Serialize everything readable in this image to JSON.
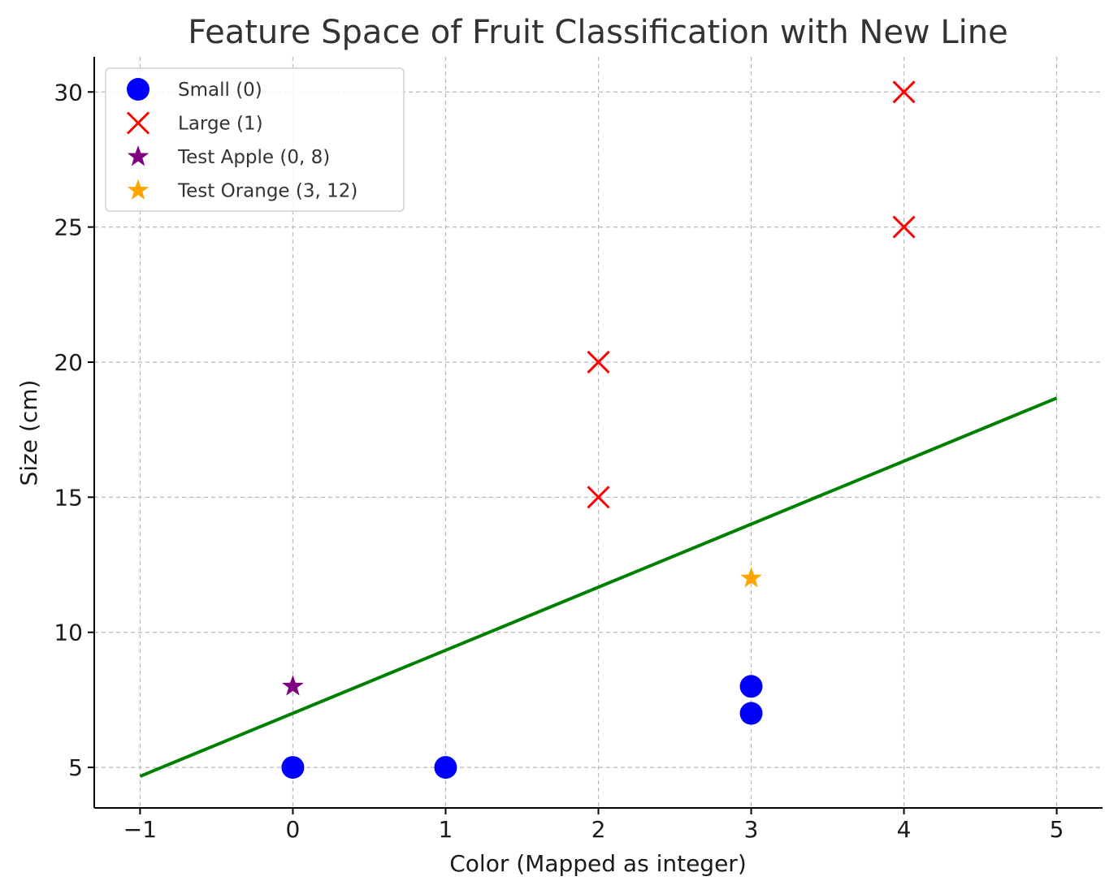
{
  "chart_data": {
    "type": "scatter",
    "title": "Feature Space of Fruit Classification with New Line",
    "xlabel": "Color (Mapped as integer)",
    "ylabel": "Size (cm)",
    "xlim": [
      -1.3,
      5.3
    ],
    "ylim": [
      3.5,
      31.3
    ],
    "x_ticks": [
      -1,
      0,
      1,
      2,
      3,
      4,
      5
    ],
    "x_tick_labels": [
      "−1",
      "0",
      "1",
      "2",
      "3",
      "4",
      "5"
    ],
    "y_ticks": [
      5,
      10,
      15,
      20,
      25,
      30
    ],
    "y_tick_labels": [
      "5",
      "10",
      "15",
      "20",
      "25",
      "30"
    ],
    "grid": true,
    "legend_position": "upper-left",
    "series": [
      {
        "name": "Small (0)",
        "marker": "circle",
        "color": "#0000ff",
        "points": [
          {
            "x": 0,
            "y": 5
          },
          {
            "x": 1,
            "y": 5
          },
          {
            "x": 3,
            "y": 7
          },
          {
            "x": 3,
            "y": 8
          }
        ]
      },
      {
        "name": "Large (1)",
        "marker": "x",
        "color": "#ff0000",
        "points": [
          {
            "x": 2,
            "y": 15
          },
          {
            "x": 2,
            "y": 20
          },
          {
            "x": 4,
            "y": 25
          },
          {
            "x": 4,
            "y": 30
          }
        ]
      },
      {
        "name": "Test Apple (0, 8)",
        "marker": "star",
        "color": "#800080",
        "points": [
          {
            "x": 0,
            "y": 8
          }
        ]
      },
      {
        "name": "Test Orange (3, 12)",
        "marker": "star",
        "color": "#ffa500",
        "points": [
          {
            "x": 3,
            "y": 12
          }
        ]
      }
    ],
    "lines": [
      {
        "color": "#008000",
        "points": [
          {
            "x": -1,
            "y": 4.67
          },
          {
            "x": 5,
            "y": 18.67
          }
        ]
      }
    ]
  }
}
